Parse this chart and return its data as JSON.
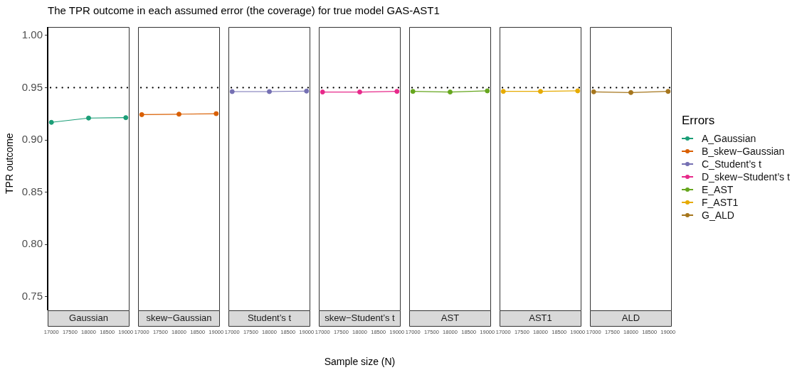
{
  "chart_data": [
    {
      "type": "line",
      "title": "The TPR outcome in each assumed error (the coverage) for true model GAS-AST1",
      "subtitle": "Gaussian",
      "ylabel": "TPR outcome",
      "x": [
        17000,
        18000,
        19000
      ],
      "series": [
        {
          "name": "A_Gaussian",
          "color": "#1b9e77",
          "values": [
            0.9168,
            0.9209,
            0.9213
          ]
        }
      ],
      "xlim": [
        16900,
        19100
      ],
      "xticks": [
        17000,
        17500,
        18000,
        18500,
        19000
      ],
      "ylim": [
        0.737,
        1.008
      ],
      "yticks": [
        0.75,
        {
          "value": 0.8,
          "label": "0.80"
        },
        0.85,
        {
          "value": 0.9,
          "label": "0.90"
        },
        0.95,
        {
          "value": 1.0,
          "label": "1.00"
        }
      ],
      "ref_lines": [
        {
          "axis": "y",
          "value": 0.95,
          "color": "#000000",
          "line_style": "dotted"
        }
      ],
      "marker": "circle",
      "line_style": "solid",
      "grid": false
    },
    {
      "type": "line",
      "subtitle": "skew−Gaussian",
      "x": [
        17000,
        18000,
        19000
      ],
      "series": [
        {
          "name": "B_skew−Gaussian",
          "color": "#d95f02",
          "values": [
            0.9242,
            0.9246,
            0.9251
          ]
        }
      ],
      "xlim": [
        16900,
        19100
      ],
      "xticks": [
        17000,
        17500,
        18000,
        18500,
        19000
      ],
      "ylim": [
        0.737,
        1.008
      ],
      "yticks": [
        0.75,
        0.8,
        0.85,
        0.9,
        0.95,
        1.0
      ],
      "tick_labels": "x",
      "ref_lines": [
        {
          "axis": "y",
          "value": 0.95,
          "color": "#000000",
          "line_style": "dotted"
        }
      ],
      "marker": "circle",
      "line_style": "solid",
      "grid": false
    },
    {
      "type": "line",
      "subtitle": "Student’s t",
      "x": [
        17000,
        18000,
        19000
      ],
      "series": [
        {
          "name": "C_Student’s t",
          "color": "#7570b3",
          "values": [
            0.9462,
            0.9462,
            0.9467
          ]
        }
      ],
      "xlim": [
        16900,
        19100
      ],
      "xticks": [
        17000,
        17500,
        18000,
        18500,
        19000
      ],
      "ylim": [
        0.737,
        1.008
      ],
      "yticks": [
        0.75,
        0.8,
        0.85,
        0.9,
        0.95,
        1.0
      ],
      "tick_labels": "x",
      "ref_lines": [
        {
          "axis": "y",
          "value": 0.95,
          "color": "#000000",
          "line_style": "dotted"
        }
      ],
      "marker": "circle",
      "line_style": "solid",
      "grid": false
    },
    {
      "type": "line",
      "subtitle": "skew−Student’s t",
      "xlabel": "Sample size (N)",
      "x": [
        17000,
        18000,
        19000
      ],
      "series": [
        {
          "name": "D_skew−Student’s t",
          "color": "#e7298a",
          "values": [
            0.9458,
            0.9458,
            0.9464
          ]
        }
      ],
      "xlim": [
        16900,
        19100
      ],
      "xticks": [
        17000,
        17500,
        18000,
        18500,
        19000
      ],
      "ylim": [
        0.737,
        1.008
      ],
      "yticks": [
        0.75,
        0.8,
        0.85,
        0.9,
        0.95,
        1.0
      ],
      "tick_labels": "x",
      "ref_lines": [
        {
          "axis": "y",
          "value": 0.95,
          "color": "#000000",
          "line_style": "dotted"
        }
      ],
      "marker": "circle",
      "line_style": "solid",
      "grid": false
    },
    {
      "type": "line",
      "subtitle": "AST",
      "x": [
        17000,
        18000,
        19000
      ],
      "series": [
        {
          "name": "E_AST",
          "color": "#66a61e",
          "values": [
            0.9464,
            0.9458,
            0.9469
          ]
        }
      ],
      "xlim": [
        16900,
        19100
      ],
      "xticks": [
        17000,
        17500,
        18000,
        18500,
        19000
      ],
      "ylim": [
        0.737,
        1.008
      ],
      "yticks": [
        0.75,
        0.8,
        0.85,
        0.9,
        0.95,
        1.0
      ],
      "tick_labels": "x",
      "ref_lines": [
        {
          "axis": "y",
          "value": 0.95,
          "color": "#000000",
          "line_style": "dotted"
        }
      ],
      "marker": "circle",
      "line_style": "solid",
      "grid": false
    },
    {
      "type": "line",
      "subtitle": "AST1",
      "x": [
        17000,
        18000,
        19000
      ],
      "series": [
        {
          "name": "F_AST1",
          "color": "#e6ab02",
          "values": [
            0.9464,
            0.9464,
            0.9469
          ]
        }
      ],
      "xlim": [
        16900,
        19100
      ],
      "xticks": [
        17000,
        17500,
        18000,
        18500,
        19000
      ],
      "ylim": [
        0.737,
        1.008
      ],
      "yticks": [
        0.75,
        0.8,
        0.85,
        0.9,
        0.95,
        1.0
      ],
      "tick_labels": "x",
      "ref_lines": [
        {
          "axis": "y",
          "value": 0.95,
          "color": "#000000",
          "line_style": "dotted"
        }
      ],
      "marker": "circle",
      "line_style": "solid",
      "grid": false
    },
    {
      "type": "line",
      "subtitle": "ALD",
      "legend_title": "Errors",
      "legend": "right",
      "x": [
        17000,
        18000,
        19000
      ],
      "series": [
        {
          "name": "G_ALD",
          "color": "#a6761d",
          "values": [
            0.946,
            0.9453,
            0.9464
          ]
        }
      ],
      "xlim": [
        16900,
        19100
      ],
      "xticks": [
        17000,
        17500,
        18000,
        18500,
        19000
      ],
      "ylim": [
        0.737,
        1.008
      ],
      "yticks": [
        0.75,
        0.8,
        0.85,
        0.9,
        0.95,
        1.0
      ],
      "tick_labels": "x",
      "ref_lines": [
        {
          "axis": "y",
          "value": 0.95,
          "color": "#000000",
          "line_style": "dotted"
        }
      ],
      "marker": "circle",
      "line_style": "solid",
      "grid": false
    }
  ]
}
